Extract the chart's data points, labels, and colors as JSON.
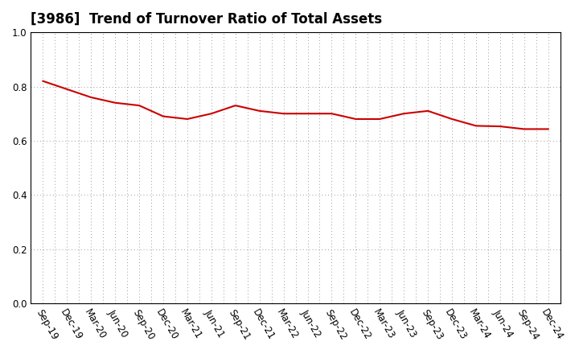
{
  "title": "[3986]  Trend of Turnover Ratio of Total Assets",
  "x_labels": [
    "Sep-19",
    "Dec-19",
    "Mar-20",
    "Jun-20",
    "Sep-20",
    "Dec-20",
    "Mar-21",
    "Jun-21",
    "Sep-21",
    "Dec-21",
    "Mar-22",
    "Jun-22",
    "Sep-22",
    "Dec-22",
    "Mar-23",
    "Jun-23",
    "Sep-23",
    "Dec-23",
    "Mar-24",
    "Jun-24",
    "Sep-24",
    "Dec-24"
  ],
  "y_values": [
    0.82,
    0.79,
    0.76,
    0.74,
    0.73,
    0.69,
    0.68,
    0.7,
    0.73,
    0.71,
    0.7,
    0.7,
    0.7,
    0.68,
    0.68,
    0.7,
    0.71,
    0.68,
    0.655,
    0.653,
    0.643,
    0.643
  ],
  "line_color": "#cc0000",
  "line_width": 1.5,
  "ylim": [
    0.0,
    1.0
  ],
  "yticks": [
    0.0,
    0.2,
    0.4,
    0.6,
    0.8,
    1.0
  ],
  "grid_color": "#999999",
  "background_color": "#ffffff",
  "title_fontsize": 12,
  "tick_fontsize": 8.5,
  "spine_color": "#000000"
}
